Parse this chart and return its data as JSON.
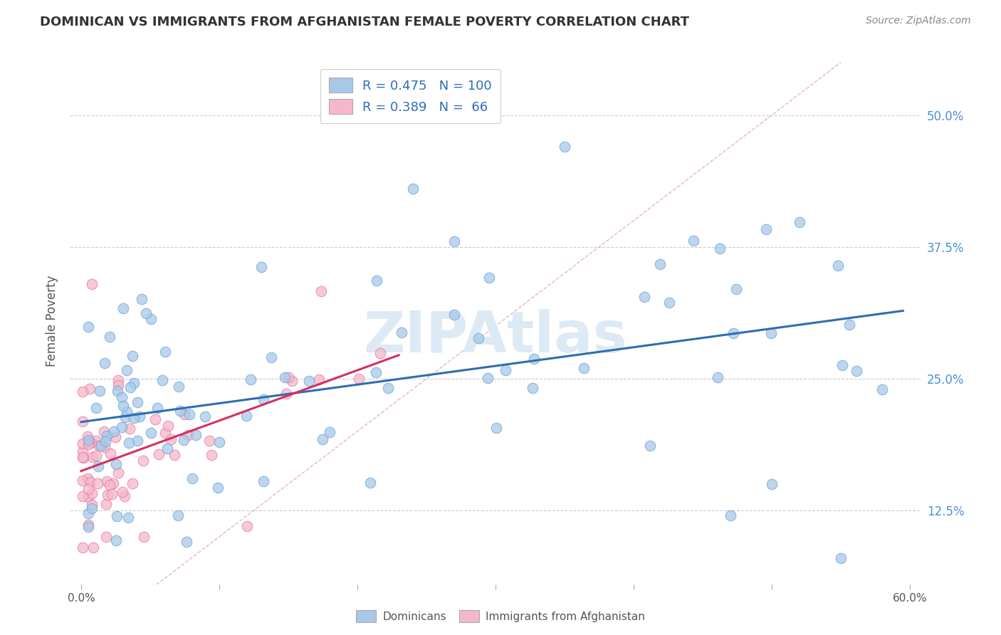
{
  "title": "DOMINICAN VS IMMIGRANTS FROM AFGHANISTAN FEMALE POVERTY CORRELATION CHART",
  "source": "Source: ZipAtlas.com",
  "ylabel": "Female Poverty",
  "xlim": [
    0.0,
    0.6
  ],
  "ylim": [
    0.055,
    0.555
  ],
  "xticks": [
    0.0,
    0.1,
    0.2,
    0.3,
    0.4,
    0.5,
    0.6
  ],
  "xticklabels": [
    "0.0%",
    "",
    "",
    "",
    "",
    "",
    "60.0%"
  ],
  "ytick_positions": [
    0.125,
    0.25,
    0.375,
    0.5
  ],
  "ytick_labels": [
    "12.5%",
    "25.0%",
    "37.5%",
    "50.0%"
  ],
  "dominicans_color": "#a8c8e8",
  "dominicans_edge": "#6aaad4",
  "afghanistan_color": "#f5b8cb",
  "afghanistan_edge": "#e87aa0",
  "trendline_dominicans_color": "#2e6db4",
  "trendline_afghanistan_color": "#d63060",
  "diagonal_color": "#e8a0b4",
  "R_dominicans": 0.475,
  "N_dominicans": 100,
  "R_afghanistan": 0.389,
  "N_afghanistan": 66,
  "watermark": "ZIPAtlas",
  "legend_r_color": "#2e6db4",
  "legend_n_color": "#d63060",
  "title_fontsize": 13,
  "source_fontsize": 10
}
